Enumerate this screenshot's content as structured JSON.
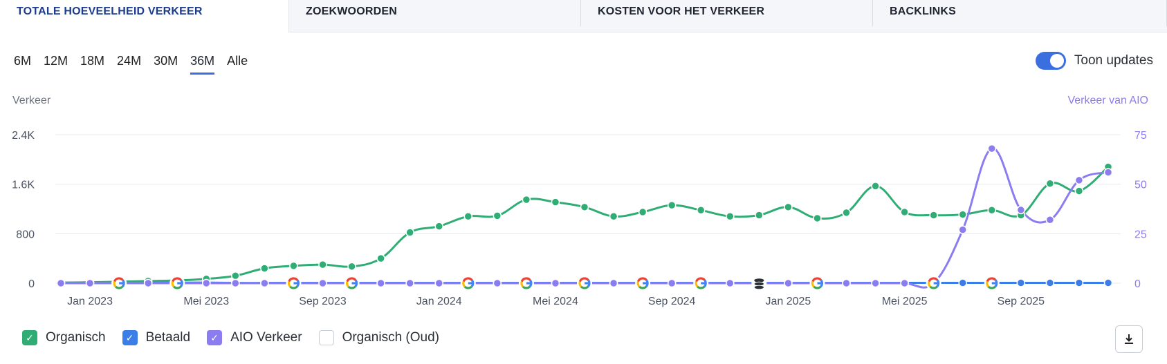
{
  "tabs": [
    {
      "label": "TOTALE HOEVEELHEID VERKEER",
      "active": true
    },
    {
      "label": "ZOEKWOORDEN",
      "active": false
    },
    {
      "label": "KOSTEN VOOR HET VERKEER",
      "active": false
    },
    {
      "label": "BACKLINKS",
      "active": false
    }
  ],
  "periods": [
    {
      "label": "6M",
      "active": false
    },
    {
      "label": "12M",
      "active": false
    },
    {
      "label": "18M",
      "active": false
    },
    {
      "label": "24M",
      "active": false
    },
    {
      "label": "30M",
      "active": false
    },
    {
      "label": "36M",
      "active": true
    },
    {
      "label": "Alle",
      "active": false
    }
  ],
  "toggle": {
    "label": "Toon updates",
    "on": true
  },
  "legend": [
    {
      "label": "Organisch",
      "checked": true,
      "color": "#2fad75"
    },
    {
      "label": "Betaald",
      "checked": true,
      "color": "#3b7ee8"
    },
    {
      "label": "AIO Verkeer",
      "checked": true,
      "color": "#8b7cf0"
    },
    {
      "label": "Organisch (Oud)",
      "checked": false,
      "color": "#c9ced6"
    }
  ],
  "download": {
    "icon": "download-icon"
  },
  "chart_data": {
    "type": "line",
    "ylabel": "Verkeer",
    "y2label": "Verkeer van AIO",
    "ylim": [
      0,
      2400
    ],
    "y2lim": [
      0,
      75
    ],
    "yticks": [
      "0",
      "800",
      "1.6K",
      "2.4K"
    ],
    "y2ticks": [
      "0",
      "25",
      "50",
      "75"
    ],
    "grid": true,
    "x_tick_labels": [
      "Jan 2023",
      "Mei 2023",
      "Sep 2023",
      "Jan 2024",
      "Mei 2024",
      "Sep 2024",
      "Jan 2025",
      "Mei 2025",
      "Sep 2025"
    ],
    "months": [
      "2022-12",
      "2023-01",
      "2023-02",
      "2023-03",
      "2023-04",
      "2023-05",
      "2023-06",
      "2023-07",
      "2023-08",
      "2023-09",
      "2023-10",
      "2023-11",
      "2023-12",
      "2024-01",
      "2024-02",
      "2024-03",
      "2024-04",
      "2024-05",
      "2024-06",
      "2024-07",
      "2024-08",
      "2024-09",
      "2024-10",
      "2024-11",
      "2024-12",
      "2025-01",
      "2025-02",
      "2025-03",
      "2025-04",
      "2025-05",
      "2025-06",
      "2025-07",
      "2025-08",
      "2025-09",
      "2025-10",
      "2025-11",
      "2025-12"
    ],
    "series": [
      {
        "name": "Organisch",
        "color": "#2fad75",
        "axis": "left",
        "values": [
          10,
          15,
          25,
          35,
          45,
          70,
          120,
          240,
          280,
          300,
          270,
          400,
          820,
          920,
          1080,
          1090,
          1350,
          1310,
          1230,
          1080,
          1150,
          1260,
          1180,
          1080,
          1100,
          1230,
          1050,
          1140,
          1570,
          1150,
          1100,
          1110,
          1180,
          1100,
          1610,
          1490,
          1880
        ]
      },
      {
        "name": "Betaald",
        "color": "#3b7ee8",
        "axis": "left",
        "values": [
          5,
          5,
          5,
          10,
          10,
          10,
          5,
          5,
          5,
          5,
          5,
          5,
          5,
          5,
          5,
          5,
          5,
          5,
          5,
          5,
          5,
          5,
          5,
          5,
          5,
          5,
          5,
          5,
          5,
          5,
          5,
          5,
          5,
          5,
          5,
          5,
          5
        ]
      },
      {
        "name": "AIO Verkeer",
        "color": "#8b7cf0",
        "axis": "right",
        "values": [
          0,
          0,
          0,
          0,
          0,
          0,
          0,
          0,
          0,
          0,
          0,
          0,
          0,
          0,
          0,
          0,
          0,
          0,
          0,
          0,
          0,
          0,
          0,
          0,
          0,
          0,
          0,
          0,
          0,
          0,
          0,
          27,
          68,
          37,
          32,
          52,
          56
        ]
      }
    ],
    "update_markers": [
      {
        "month": "2023-02",
        "icon": "google-icon"
      },
      {
        "month": "2023-04",
        "icon": "google-icon"
      },
      {
        "month": "2023-08",
        "icon": "google-icon"
      },
      {
        "month": "2023-10",
        "icon": "google-icon"
      },
      {
        "month": "2024-02",
        "icon": "google-icon"
      },
      {
        "month": "2024-04",
        "icon": "google-icon"
      },
      {
        "month": "2024-06",
        "icon": "google-icon"
      },
      {
        "month": "2024-08",
        "icon": "google-icon"
      },
      {
        "month": "2024-10",
        "icon": "google-icon"
      },
      {
        "month": "2024-12",
        "icon": "database-icon"
      },
      {
        "month": "2025-02",
        "icon": "google-icon"
      },
      {
        "month": "2025-06",
        "icon": "google-icon"
      },
      {
        "month": "2025-08",
        "icon": "google-icon"
      }
    ]
  }
}
